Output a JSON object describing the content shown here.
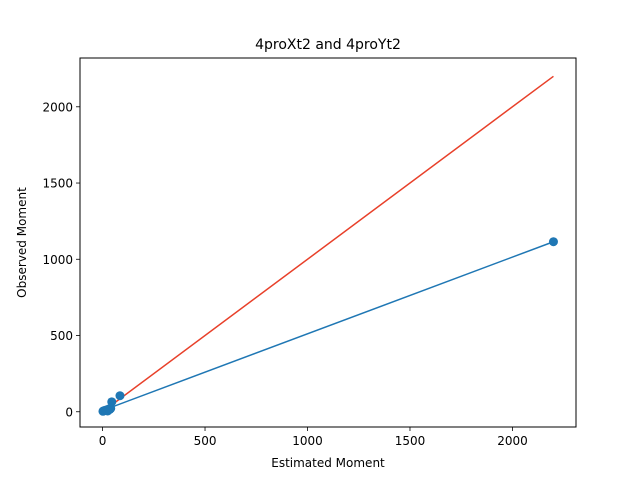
{
  "chart_data": {
    "type": "scatter",
    "title": "4proXt2 and 4proYt2",
    "xlabel": "Estimated Moment",
    "ylabel": "Observed Moment",
    "xlim": [
      -110,
      2310
    ],
    "ylim": [
      -100,
      2320
    ],
    "xticks": [
      0,
      500,
      1000,
      1500,
      2000
    ],
    "yticks": [
      0,
      500,
      1000,
      1500,
      2000
    ],
    "grid": false,
    "legend": "none",
    "points": [
      {
        "x": 2,
        "y": 3
      },
      {
        "x": 5,
        "y": 6
      },
      {
        "x": 10,
        "y": 8
      },
      {
        "x": 15,
        "y": 10
      },
      {
        "x": 20,
        "y": 12
      },
      {
        "x": 25,
        "y": 5
      },
      {
        "x": 30,
        "y": 18
      },
      {
        "x": 35,
        "y": 15
      },
      {
        "x": 40,
        "y": 22
      },
      {
        "x": 45,
        "y": 65
      },
      {
        "x": 85,
        "y": 105
      },
      {
        "x": 2200,
        "y": 1115
      }
    ],
    "lines": [
      {
        "x": [
          0,
          2200
        ],
        "y": [
          0,
          2200
        ],
        "color": "#e8402a"
      },
      {
        "x": [
          0,
          2200
        ],
        "y": [
          8,
          1115
        ],
        "color": "#1f77b4"
      }
    ],
    "colors": {
      "points": "#1f77b4",
      "identity_line": "#e8402a",
      "fit_line": "#1f77b4"
    }
  }
}
